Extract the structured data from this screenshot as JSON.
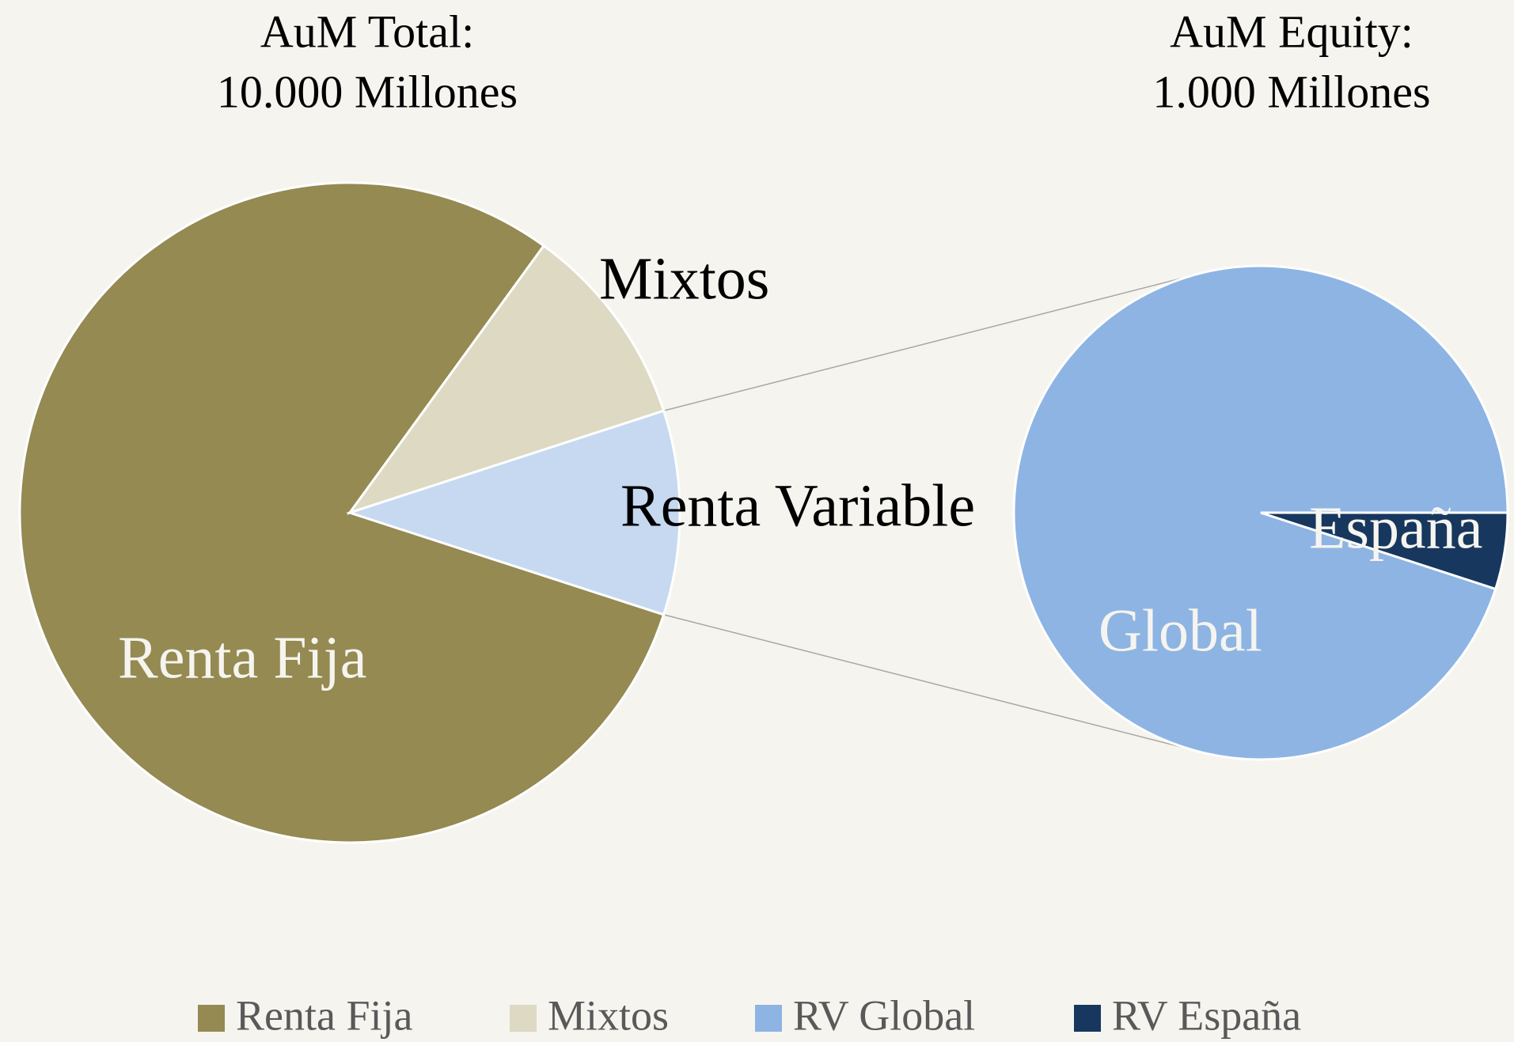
{
  "chart_data": [
    {
      "type": "pie",
      "title": [
        "AuM Total:",
        "10.000 Millones"
      ],
      "categories": [
        "Renta Fija",
        "Mixtos",
        "Renta Variable"
      ],
      "values": [
        80,
        10,
        10
      ],
      "colors": [
        "#948a52",
        "#ddd9c3",
        "#c6d9f1"
      ]
    },
    {
      "type": "pie",
      "title": [
        "AuM Equity:",
        "1.000 Millones"
      ],
      "categories": [
        "Global",
        "España"
      ],
      "values": [
        95,
        5
      ],
      "colors": [
        "#8eb4e3",
        "#17375e"
      ]
    }
  ],
  "legend": [
    {
      "name": "Renta Fija",
      "color": "#948a52"
    },
    {
      "name": "Mixtos",
      "color": "#ddd9c3"
    },
    {
      "name": "RV Global",
      "color": "#8eb4e3"
    },
    {
      "name": "RV España",
      "color": "#17375e"
    }
  ]
}
